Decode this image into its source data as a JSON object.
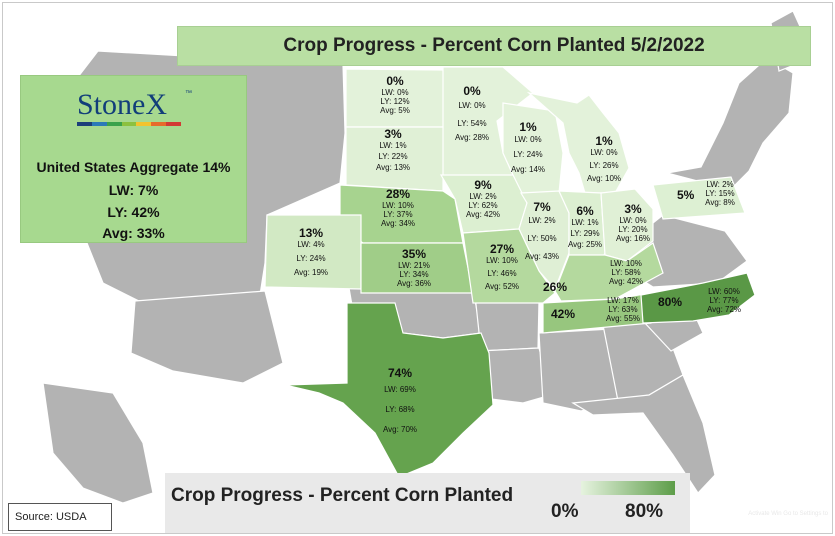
{
  "title": "Crop Progress - Percent Corn Planted 5/2/2022",
  "logo": {
    "name": "StoneX",
    "tm": "™"
  },
  "aggregate": {
    "line1": "United States Aggregate 14%",
    "line2": "LW: 7%",
    "line3": "LY: 42%",
    "line4": "Avg: 33%"
  },
  "legend": {
    "title": "Crop Progress - Percent Corn Planted",
    "low": "0%",
    "high": "80%",
    "colors": [
      "#e6f3df",
      "#5d9d49"
    ]
  },
  "source": "Source: USDA",
  "watermark": "Activate Win Go to Settings to",
  "states": {
    "nd": {
      "pct": "0%",
      "lw": "LW: 0%",
      "ly": "LY: 12%",
      "avg": "Avg: 5%"
    },
    "mn": {
      "pct": "0%",
      "lw": "LW: 0%",
      "ly": "LY: 54%",
      "avg": "Avg: 28%"
    },
    "sd": {
      "pct": "3%",
      "lw": "LW: 1%",
      "ly": "LY: 22%",
      "avg": "Avg: 13%"
    },
    "wi": {
      "pct": "1%",
      "lw": "LW: 0%",
      "ly": "LY: 24%",
      "avg": "Avg: 14%"
    },
    "mi": {
      "pct": "1%",
      "lw": "LW: 0%",
      "ly": "LY: 26%",
      "avg": "Avg: 10%"
    },
    "ne": {
      "pct": "28%",
      "lw": "LW: 10%",
      "ly": "LY: 37%",
      "avg": "Avg: 34%"
    },
    "ia": {
      "pct": "9%",
      "lw": "LW: 2%",
      "ly": "LY: 62%",
      "avg": "Avg: 42%"
    },
    "il": {
      "pct": "7%",
      "lw": "LW: 2%",
      "ly": "LY: 50%",
      "avg": "Avg: 43%"
    },
    "in": {
      "pct": "6%",
      "lw": "LW: 1%",
      "ly": "LY: 29%",
      "avg": "Avg: 25%"
    },
    "oh": {
      "pct": "3%",
      "lw": "LW: 0%",
      "ly": "LY: 20%",
      "avg": "Avg: 16%"
    },
    "pa": {
      "pct": "5%",
      "lw": "LW: 2%",
      "ly": "LY: 15%",
      "avg": "Avg: 8%"
    },
    "co": {
      "pct": "13%",
      "lw": "LW: 4%",
      "ly": "LY: 24%",
      "avg": "Avg: 19%"
    },
    "ks": {
      "pct": "35%",
      "lw": "LW: 21%",
      "ly": "LY: 34%",
      "avg": "Avg: 36%"
    },
    "mo": {
      "pct": "27%",
      "lw": "LW: 10%",
      "ly": "LY: 46%",
      "avg": "Avg: 52%"
    },
    "ky": {
      "pct": "26%",
      "lw": "LW: 10%",
      "ly": "LY: 58%",
      "avg": "Avg: 42%"
    },
    "tn": {
      "pct": "42%",
      "lw": "LW: 17%",
      "ly": "LY: 63%",
      "avg": "Avg: 55%"
    },
    "nc": {
      "pct": "80%",
      "lw": "LW: 60%",
      "ly": "LY: 77%",
      "avg": "Avg: 72%"
    },
    "tx": {
      "pct": "74%",
      "lw": "LW: 69%",
      "ly": "LY: 68%",
      "avg": "Avg: 70%"
    }
  },
  "colors": {
    "other_state": "#b3b3b3",
    "ocean": "#ffffff",
    "state_border": "#ffffff"
  }
}
